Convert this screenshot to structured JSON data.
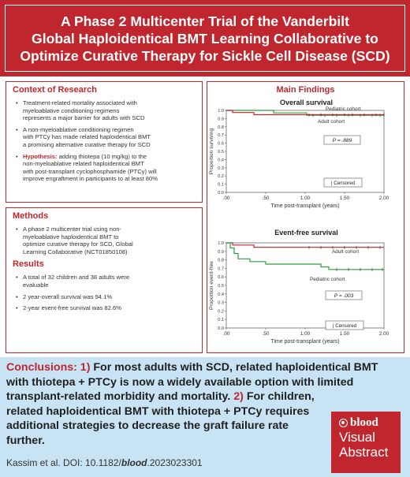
{
  "header": {
    "title": "A Phase 2 Multicenter Trial of the Vanderbilt\nGlobal Haploidentical BMT Learning Collaborative to\nOptimize Curative Therapy for Sickle Cell Disease (SCD)"
  },
  "context": {
    "title": "Context of Research",
    "bullets": [
      "Treatment-related mortality associated with\nmyeloablative conditioning regimens\nrepresents a major barrier for adults with SCD",
      "A non-myeloablative conditioning regimen\nwith PTCy has made related haploidentical BMT\na promising alternative curative therapy for SCD"
    ],
    "hypothesis_label": "Hypothesis:",
    "hypothesis_text": " adding thiotepa (10 mg/kg) to the\nnon-myeloablative related haploidentical BMT\nwith post-transplant cyclophosphamide (PTCy) will\nimprove engraftment in participants to at least 80%"
  },
  "methods": {
    "title": "Methods",
    "bullets": [
      "A phase 2 multicenter trial using non-\nmyeloablative haploidentical BMT to\noptimize curative therapy for SCD, Global\nLearning Collaborative (NCT01850108)"
    ]
  },
  "results": {
    "title": "Results",
    "bullets": [
      "A total of 32 children and 38 adults were\nevaluable",
      "2 year-overall survival was 94.1%",
      "2-year event-free survival was 82.6%"
    ]
  },
  "findings": {
    "title": "Main Findings"
  },
  "chart_data": [
    {
      "type": "line",
      "title": "Overall survival",
      "xlabel": "Time post-transplant (years)",
      "ylabel": "Proportion surviving",
      "xlim": [
        0,
        2
      ],
      "ylim": [
        0,
        1
      ],
      "x_ticks": [
        ".00",
        ".50",
        "1.00",
        "1.50",
        "2.00"
      ],
      "x_tick_values": [
        0,
        0.5,
        1,
        1.5,
        2
      ],
      "y_ticks": [
        "0.0",
        "0.1",
        "0.2",
        "0.3",
        "0.4",
        "0.5",
        "0.6",
        "0.7",
        "0.8",
        "0.9",
        "1.0"
      ],
      "p_value": "P = .889",
      "censored_label": "| Censored",
      "series": [
        {
          "name": "Pediatric cohort",
          "color": "#2e9e3e",
          "points": [
            [
              0,
              1.0
            ],
            [
              0.6,
              1.0
            ],
            [
              0.6,
              0.969
            ],
            [
              1.02,
              0.969
            ],
            [
              1.02,
              0.94
            ],
            [
              2.0,
              0.94
            ]
          ],
          "censor_x": [
            1.1,
            1.25,
            1.4,
            1.55,
            1.7,
            1.85,
            1.95
          ]
        },
        {
          "name": "Adult cohort",
          "color": "#c0262d",
          "points": [
            [
              0,
              1.0
            ],
            [
              0.08,
              1.0
            ],
            [
              0.08,
              0.974
            ],
            [
              0.35,
              0.974
            ],
            [
              0.35,
              0.947
            ],
            [
              2.0,
              0.947
            ]
          ],
          "censor_x": [
            1.05,
            1.2,
            1.35,
            1.5,
            1.6,
            1.75,
            1.9,
            2.0
          ]
        }
      ]
    },
    {
      "type": "line",
      "title": "Event-free survival",
      "xlabel": "Time post-transplant (years)",
      "ylabel": "Proportion event-free",
      "xlim": [
        0,
        2
      ],
      "ylim": [
        0,
        1
      ],
      "x_ticks": [
        ".00",
        ".50",
        "1.00",
        "1.50",
        "2.00"
      ],
      "x_tick_values": [
        0,
        0.5,
        1,
        1.5,
        2
      ],
      "y_ticks": [
        "0.0",
        "0.1",
        "0.2",
        "0.3",
        "0.4",
        "0.5",
        "0.6",
        "0.7",
        "0.8",
        "0.9",
        "1.0"
      ],
      "p_value": "P = .003",
      "censored_label": "| Censored",
      "series": [
        {
          "name": "Adult cohort",
          "color": "#c0262d",
          "points": [
            [
              0,
              1.0
            ],
            [
              0.08,
              1.0
            ],
            [
              0.08,
              0.974
            ],
            [
              0.35,
              0.974
            ],
            [
              0.35,
              0.947
            ],
            [
              2.0,
              0.947
            ]
          ],
          "censor_x": [
            1.05,
            1.2,
            1.35,
            1.5,
            1.65,
            1.8,
            1.95
          ]
        },
        {
          "name": "Pediatric cohort",
          "color": "#2e9e3e",
          "points": [
            [
              0,
              1.0
            ],
            [
              0.05,
              1.0
            ],
            [
              0.05,
              0.94
            ],
            [
              0.1,
              0.94
            ],
            [
              0.1,
              0.875
            ],
            [
              0.15,
              0.875
            ],
            [
              0.15,
              0.812
            ],
            [
              0.3,
              0.812
            ],
            [
              0.3,
              0.78
            ],
            [
              0.5,
              0.78
            ],
            [
              0.5,
              0.75
            ],
            [
              1.2,
              0.75
            ],
            [
              1.2,
              0.718
            ],
            [
              1.3,
              0.718
            ],
            [
              1.3,
              0.687
            ],
            [
              2.0,
              0.687
            ]
          ],
          "censor_x": [
            1.4,
            1.55,
            1.7,
            1.85,
            1.98
          ]
        }
      ]
    }
  ],
  "conclusions": {
    "label": "Conclusions:",
    "num1": " 1)",
    "text1": " For most adults with SCD, related haploidentical BMT with thiotepa + PTCy is now a widely available option with limited transplant-related morbidity and mortality.",
    "num2": " 2)",
    "text2a": " For children,",
    "text2b": "related haploidentical BMT with thiotepa + PTCy requires additional strategies to decrease the graft failure rate further.",
    "citation_prefix": "Kassim et al. DOI: 10.1182/",
    "citation_journal": "blood",
    "citation_suffix": ".2023023301"
  },
  "badge": {
    "brand": "blood",
    "line1": "Visual",
    "line2": "Abstract"
  }
}
